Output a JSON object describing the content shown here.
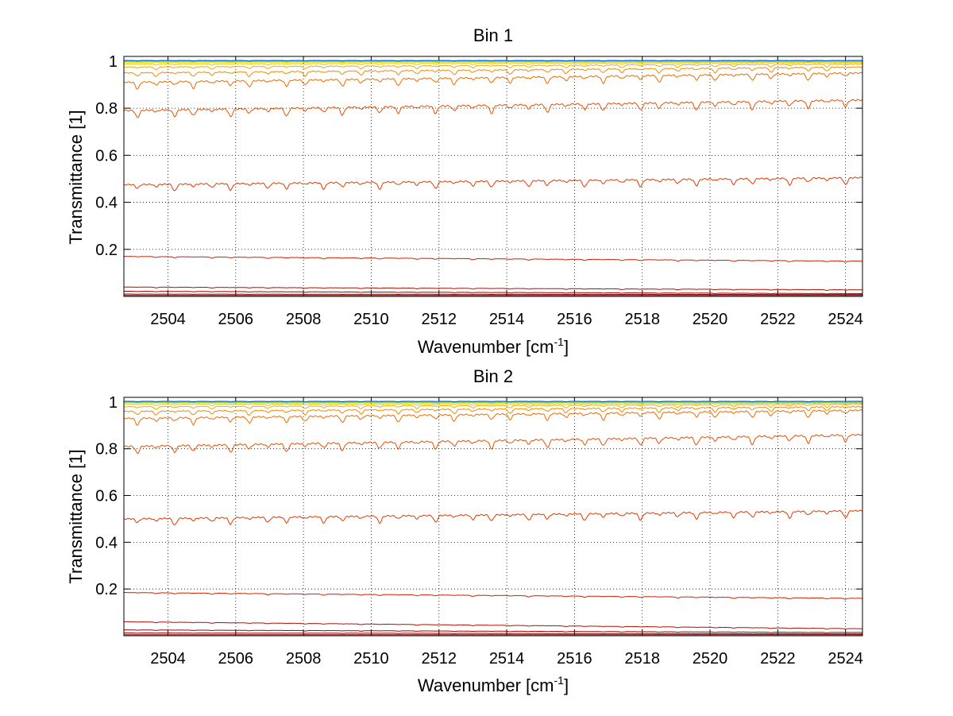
{
  "chart_data": [
    {
      "type": "line",
      "title": "Bin 1",
      "xlabel_main": "Wavenumber [cm",
      "xlabel_sup": "-1",
      "xlabel_end": "]",
      "ylabel": "Transmittance [1]",
      "xlim": [
        2502.7,
        2524.5
      ],
      "ylim": [
        0.0,
        1.02
      ],
      "xticks": [
        2504,
        2506,
        2508,
        2510,
        2512,
        2514,
        2516,
        2518,
        2520,
        2522,
        2524
      ],
      "yticks": [
        0.2,
        0.4,
        0.6,
        0.8,
        1
      ],
      "grid": true,
      "series": [
        {
          "color": "#7f0000",
          "start": 0.004,
          "end": 0.004,
          "dip": 0.0
        },
        {
          "color": "#8b0000",
          "start": 0.01,
          "end": 0.008,
          "dip": 0.001
        },
        {
          "color": "#a00000",
          "start": 0.022,
          "end": 0.012,
          "dip": 0.002
        },
        {
          "color": "#b00f00",
          "start": 0.04,
          "end": 0.028,
          "dip": 0.003
        },
        {
          "color": "#d02000",
          "start": 0.17,
          "end": 0.15,
          "dip": 0.005
        },
        {
          "color": "#e03a00",
          "start": 0.475,
          "end": 0.505,
          "dip": 0.03
        },
        {
          "color": "#e85000",
          "start": 0.79,
          "end": 0.835,
          "dip": 0.035
        },
        {
          "color": "#ee6a00",
          "start": 0.91,
          "end": 0.95,
          "dip": 0.03
        },
        {
          "color": "#f28a00",
          "start": 0.95,
          "end": 0.975,
          "dip": 0.02
        },
        {
          "color": "#f5a800",
          "start": 0.975,
          "end": 0.988,
          "dip": 0.012
        },
        {
          "color": "#f2c200",
          "start": 0.988,
          "end": 0.994,
          "dip": 0.006
        },
        {
          "color": "#e6e600",
          "start": 0.995,
          "end": 0.997,
          "dip": 0.003
        },
        {
          "color": "#b8e000",
          "start": 0.998,
          "end": 0.998,
          "dip": 0.002
        },
        {
          "color": "#40c8ff",
          "start": 1.0,
          "end": 1.0,
          "dip": 0.002
        },
        {
          "color": "#0050d0",
          "start": 1.003,
          "end": 1.003,
          "dip": 0.002
        }
      ]
    },
    {
      "type": "line",
      "title": "Bin 2",
      "xlabel_main": "Wavenumber [cm",
      "xlabel_sup": "-1",
      "xlabel_end": "]",
      "ylabel": "Transmittance [1]",
      "xlim": [
        2502.7,
        2524.5
      ],
      "ylim": [
        0.0,
        1.02
      ],
      "xticks": [
        2504,
        2506,
        2508,
        2510,
        2512,
        2514,
        2516,
        2518,
        2520,
        2522,
        2524
      ],
      "yticks": [
        0.2,
        0.4,
        0.6,
        0.8,
        1
      ],
      "grid": true,
      "series": [
        {
          "color": "#7f0000",
          "start": 0.004,
          "end": 0.004,
          "dip": 0.0
        },
        {
          "color": "#8b0000",
          "start": 0.012,
          "end": 0.008,
          "dip": 0.001
        },
        {
          "color": "#a00000",
          "start": 0.025,
          "end": 0.014,
          "dip": 0.002
        },
        {
          "color": "#b00f00",
          "start": 0.06,
          "end": 0.03,
          "dip": 0.003
        },
        {
          "color": "#d02000",
          "start": 0.185,
          "end": 0.16,
          "dip": 0.005
        },
        {
          "color": "#e03a00",
          "start": 0.5,
          "end": 0.535,
          "dip": 0.03
        },
        {
          "color": "#e85000",
          "start": 0.81,
          "end": 0.86,
          "dip": 0.035
        },
        {
          "color": "#ee6a00",
          "start": 0.93,
          "end": 0.965,
          "dip": 0.03
        },
        {
          "color": "#f28a00",
          "start": 0.96,
          "end": 0.98,
          "dip": 0.02
        },
        {
          "color": "#f5a800",
          "start": 0.98,
          "end": 0.99,
          "dip": 0.012
        },
        {
          "color": "#f2c200",
          "start": 0.99,
          "end": 0.995,
          "dip": 0.006
        },
        {
          "color": "#e6e600",
          "start": 0.996,
          "end": 0.998,
          "dip": 0.003
        },
        {
          "color": "#b8e000",
          "start": 0.998,
          "end": 0.998,
          "dip": 0.002
        },
        {
          "color": "#40c8ff",
          "start": 1.0,
          "end": 1.0,
          "dip": 0.002
        },
        {
          "color": "#0050d0",
          "start": 1.003,
          "end": 1.003,
          "dip": 0.002
        }
      ]
    }
  ]
}
